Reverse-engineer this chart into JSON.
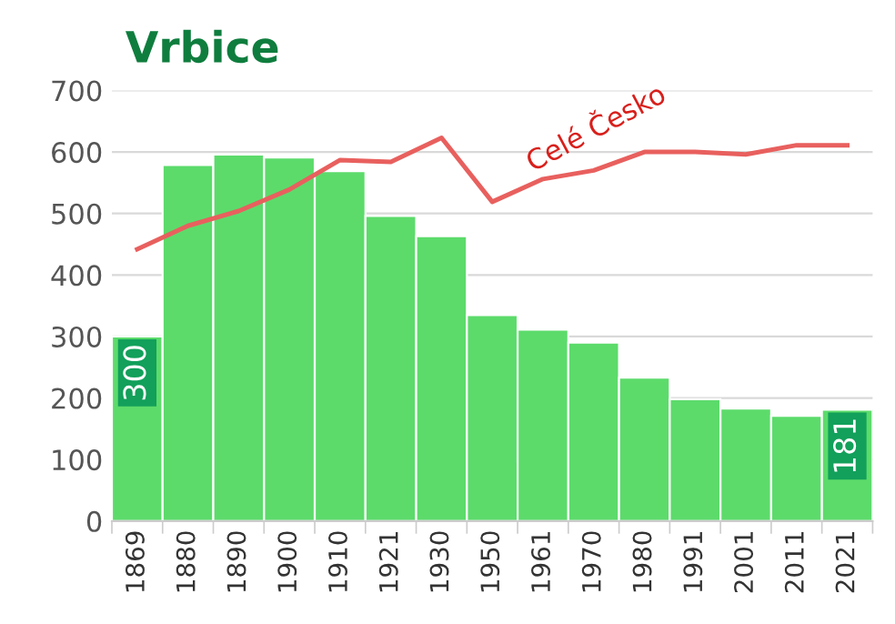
{
  "chart_data": {
    "type": "bar",
    "title": "Vrbice",
    "categories": [
      "1869",
      "1880",
      "1890",
      "1900",
      "1910",
      "1921",
      "1930",
      "1950",
      "1961",
      "1970",
      "1980",
      "1991",
      "2001",
      "2011",
      "2021"
    ],
    "series": [
      {
        "color": "#5cdb6b",
        "values": [
          300,
          579,
          596,
          591,
          569,
          496,
          463,
          335,
          311,
          290,
          233,
          198,
          183,
          171,
          181
        ],
        "value_labels": [
          "300",
          null,
          null,
          null,
          null,
          null,
          null,
          null,
          null,
          null,
          null,
          null,
          null,
          null,
          "181"
        ]
      },
      {
        "type": "line",
        "name": "Celé Česko",
        "color": "#e8605e",
        "values": [
          442,
          480,
          504,
          539,
          587,
          584,
          623,
          519,
          556,
          570,
          600,
          600,
          596,
          611,
          611
        ]
      }
    ],
    "ylim": [
      0,
      700
    ],
    "yticks": [
      0,
      100,
      200,
      300,
      400,
      500,
      600,
      700
    ],
    "grid": "y"
  }
}
